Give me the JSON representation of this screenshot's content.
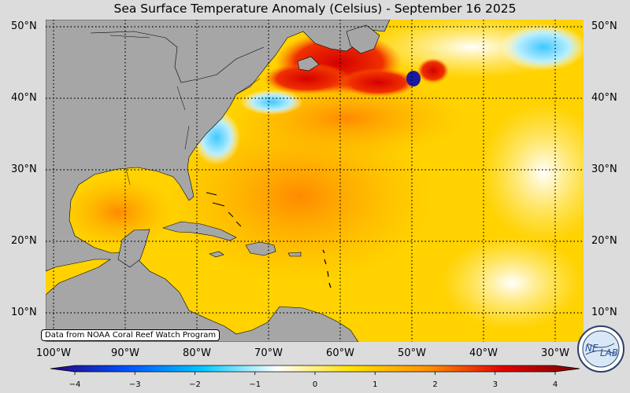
{
  "title": "Sea Surface Temperature Anomaly (Celsius) - September 16 2025",
  "source_note": "Data from NOAA Coral Reef Watch Program",
  "logo_text": {
    "part1": "NE",
    "part2": "LAB"
  },
  "lat_labels": [
    "50°N",
    "40°N",
    "30°N",
    "20°N",
    "10°N"
  ],
  "lon_labels": [
    "100°W",
    "90°W",
    "80°W",
    "70°W",
    "60°W",
    "50°W",
    "40°W",
    "30°W"
  ],
  "colorbar": {
    "min": -4,
    "max": 4,
    "ticks": [
      "−4",
      "−3",
      "−2",
      "−1",
      "0",
      "1",
      "2",
      "3",
      "4"
    ],
    "colors": [
      "#2a007e",
      "#0050ff",
      "#00c8ff",
      "#ffffff",
      "#ffe000",
      "#ff9000",
      "#e00000",
      "#7e0000"
    ]
  },
  "colors": {
    "land": "#a6a6a6",
    "ocean_base": "#ffd200",
    "background": "#dcdcdc"
  }
}
